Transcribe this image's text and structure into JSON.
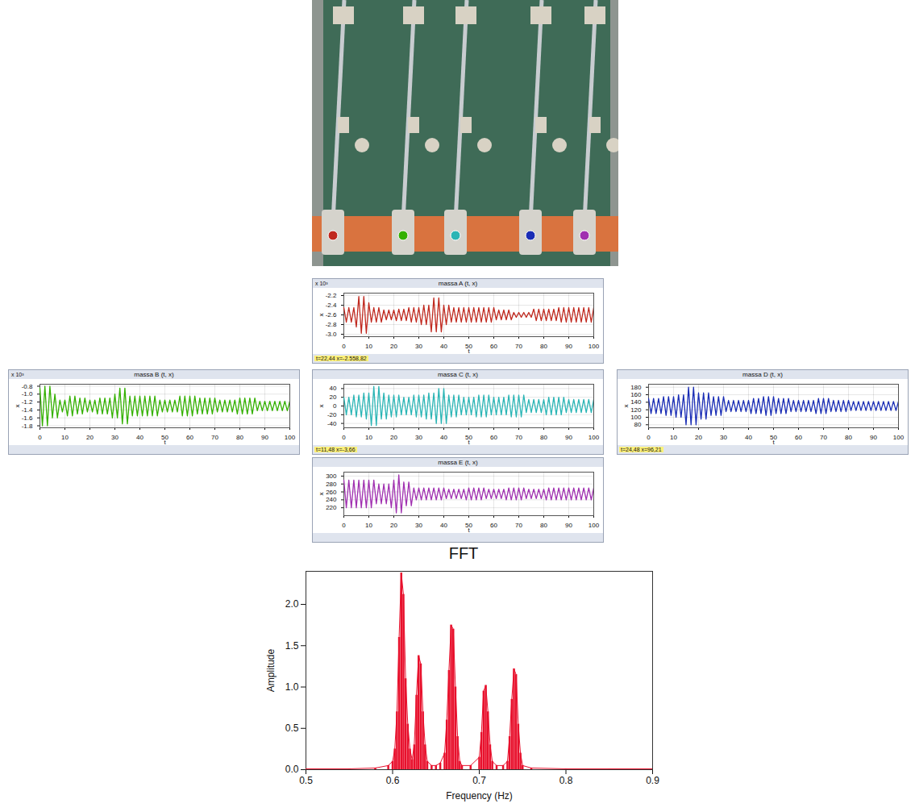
{
  "chart_data": [
    {
      "type": "line",
      "title": "massa A (t, x)",
      "xlabel": "t",
      "ylabel": "x",
      "y_multiplier": "x 10³",
      "readout": "t=22,44 x=-2.558,82",
      "color": "#c0281e",
      "grid": true,
      "xlim": [
        0,
        100
      ],
      "xticks": [
        0,
        10,
        20,
        30,
        40,
        50,
        60,
        70,
        80,
        90,
        100
      ],
      "ylim": [
        -3.05,
        -2.15
      ],
      "yticks": [
        {
          "value": -3,
          "label": "-3.0"
        },
        -2.8,
        -2.6,
        -2.4,
        -2.2
      ],
      "x": [
        0,
        1,
        2,
        3,
        4,
        5,
        6,
        7,
        8,
        9,
        10,
        11,
        12,
        13,
        14,
        15,
        16,
        17,
        18,
        19,
        20,
        21,
        22,
        23,
        24,
        25,
        26,
        27,
        28,
        29,
        30,
        31,
        32,
        33,
        34,
        35,
        36,
        37,
        38,
        39,
        40,
        41,
        42,
        43,
        44,
        45,
        46,
        47,
        48,
        49,
        50,
        51,
        52,
        53,
        54,
        55,
        56,
        57,
        58,
        59,
        60,
        61,
        62,
        63,
        64,
        65,
        66,
        67,
        68,
        69,
        70,
        71,
        72,
        73,
        74,
        75,
        76,
        77,
        78,
        79,
        80,
        81,
        82,
        83,
        84,
        85,
        86,
        87,
        88,
        89,
        90,
        91,
        92,
        93,
        94,
        95,
        96,
        97,
        98,
        99,
        100
      ],
      "values": [
        -2.45,
        -2.75,
        -2.45,
        -2.75,
        -2.45,
        -2.85,
        -2.22,
        -2.98,
        -2.22,
        -2.98,
        -2.35,
        -2.75,
        -2.45,
        -2.75,
        -2.45,
        -2.75,
        -2.5,
        -2.7,
        -2.5,
        -2.7,
        -2.5,
        -2.72,
        -2.48,
        -2.72,
        -2.48,
        -2.72,
        -2.45,
        -2.75,
        -2.45,
        -2.75,
        -2.45,
        -2.8,
        -2.4,
        -2.8,
        -2.4,
        -2.95,
        -2.25,
        -2.95,
        -2.25,
        -2.95,
        -2.4,
        -2.8,
        -2.4,
        -2.75,
        -2.45,
        -2.75,
        -2.45,
        -2.75,
        -2.45,
        -2.75,
        -2.45,
        -2.75,
        -2.45,
        -2.75,
        -2.45,
        -2.75,
        -2.45,
        -2.75,
        -2.45,
        -2.75,
        -2.45,
        -2.7,
        -2.5,
        -2.7,
        -2.5,
        -2.7,
        -2.5,
        -2.7,
        -2.55,
        -2.65,
        -2.55,
        -2.65,
        -2.55,
        -2.65,
        -2.55,
        -2.65,
        -2.48,
        -2.72,
        -2.48,
        -2.72,
        -2.48,
        -2.72,
        -2.48,
        -2.72,
        -2.48,
        -2.72,
        -2.45,
        -2.75,
        -2.45,
        -2.75,
        -2.45,
        -2.75,
        -2.45,
        -2.75,
        -2.45,
        -2.75,
        -2.45,
        -2.75,
        -2.45,
        -2.75,
        -2.45
      ]
    },
    {
      "type": "line",
      "title": "massa B (t, x)",
      "xlabel": "t",
      "ylabel": "x",
      "y_multiplier": "x 10³",
      "color": "#33b000",
      "grid": true,
      "xlim": [
        0,
        100
      ],
      "xticks": [
        0,
        10,
        20,
        30,
        40,
        50,
        60,
        70,
        80,
        90,
        100
      ],
      "ylim": [
        -1.85,
        -0.75
      ],
      "yticks": [
        -1.8,
        -1.6,
        -1.4,
        -1.2,
        {
          "value": -1,
          "label": "-1.0"
        },
        -0.8
      ],
      "x": [
        0,
        1,
        2,
        3,
        4,
        5,
        6,
        7,
        8,
        9,
        10,
        11,
        12,
        13,
        14,
        15,
        16,
        17,
        18,
        19,
        20,
        21,
        22,
        23,
        24,
        25,
        26,
        27,
        28,
        29,
        30,
        31,
        32,
        33,
        34,
        35,
        36,
        37,
        38,
        39,
        40,
        41,
        42,
        43,
        44,
        45,
        46,
        47,
        48,
        49,
        50,
        51,
        52,
        53,
        54,
        55,
        56,
        57,
        58,
        59,
        60,
        61,
        62,
        63,
        64,
        65,
        66,
        67,
        68,
        69,
        70,
        71,
        72,
        73,
        74,
        75,
        76,
        77,
        78,
        79,
        80,
        81,
        82,
        83,
        84,
        85,
        86,
        87,
        88,
        89,
        90,
        91,
        92,
        93,
        94,
        95,
        96,
        97,
        98,
        99,
        100
      ],
      "values": [
        -0.85,
        -1.8,
        -0.8,
        -1.8,
        -0.8,
        -1.6,
        -1.0,
        -1.6,
        -1.15,
        -1.45,
        -1.15,
        -1.55,
        -1.05,
        -1.55,
        -1.05,
        -1.5,
        -1.1,
        -1.5,
        -1.1,
        -1.45,
        -1.15,
        -1.45,
        -1.15,
        -1.5,
        -1.1,
        -1.5,
        -1.1,
        -1.5,
        -1.1,
        -1.6,
        -1.0,
        -1.6,
        -0.85,
        -1.75,
        -0.85,
        -1.75,
        -1.05,
        -1.55,
        -1.05,
        -1.55,
        -1.05,
        -1.55,
        -1.05,
        -1.55,
        -1.05,
        -1.55,
        -1.05,
        -1.55,
        -1.15,
        -1.45,
        -1.15,
        -1.45,
        -1.15,
        -1.45,
        -1.15,
        -1.45,
        -1.05,
        -1.55,
        -1.05,
        -1.55,
        -1.05,
        -1.55,
        -1.05,
        -1.5,
        -1.1,
        -1.5,
        -1.1,
        -1.5,
        -1.1,
        -1.5,
        -1.1,
        -1.45,
        -1.15,
        -1.45,
        -1.15,
        -1.45,
        -1.15,
        -1.45,
        -1.15,
        -1.5,
        -1.1,
        -1.5,
        -1.1,
        -1.5,
        -1.1,
        -1.5,
        -1.1,
        -1.42,
        -1.18,
        -1.42,
        -1.18,
        -1.42,
        -1.18,
        -1.42,
        -1.18,
        -1.42,
        -1.18,
        -1.42,
        -1.18,
        -1.42,
        -1.18
      ]
    },
    {
      "type": "line",
      "title": "massa C (t, x)",
      "xlabel": "t",
      "ylabel": "x",
      "readout": "t=11,48 x=-3,66",
      "color": "#2bb5b5",
      "grid": true,
      "xlim": [
        0,
        100
      ],
      "xticks": [
        0,
        10,
        20,
        30,
        40,
        50,
        60,
        70,
        80,
        90,
        100
      ],
      "ylim": [
        -50,
        50
      ],
      "yticks": [
        -40,
        -20,
        0,
        20,
        40
      ],
      "x": [
        0,
        1,
        2,
        3,
        4,
        5,
        6,
        7,
        8,
        9,
        10,
        11,
        12,
        13,
        14,
        15,
        16,
        17,
        18,
        19,
        20,
        21,
        22,
        23,
        24,
        25,
        26,
        27,
        28,
        29,
        30,
        31,
        32,
        33,
        34,
        35,
        36,
        37,
        38,
        39,
        40,
        41,
        42,
        43,
        44,
        45,
        46,
        47,
        48,
        49,
        50,
        51,
        52,
        53,
        54,
        55,
        56,
        57,
        58,
        59,
        60,
        61,
        62,
        63,
        64,
        65,
        66,
        67,
        68,
        69,
        70,
        71,
        72,
        73,
        74,
        75,
        76,
        77,
        78,
        79,
        80,
        81,
        82,
        83,
        84,
        85,
        86,
        87,
        88,
        89,
        90,
        91,
        92,
        93,
        94,
        95,
        96,
        97,
        98,
        99,
        100
      ],
      "values": [
        20,
        -20,
        20,
        -20,
        25,
        -25,
        25,
        -25,
        30,
        -30,
        30,
        -45,
        45,
        -45,
        45,
        -30,
        30,
        -30,
        25,
        -25,
        25,
        -25,
        25,
        -20,
        20,
        -20,
        20,
        -20,
        25,
        -25,
        25,
        -25,
        25,
        -30,
        30,
        -30,
        30,
        -40,
        40,
        -40,
        40,
        -40,
        25,
        -25,
        25,
        -25,
        25,
        -20,
        20,
        -20,
        20,
        -20,
        20,
        -25,
        25,
        -25,
        25,
        -25,
        25,
        -20,
        20,
        -20,
        20,
        -20,
        20,
        -20,
        25,
        -25,
        25,
        -25,
        25,
        -25,
        25,
        -15,
        15,
        -15,
        15,
        -15,
        15,
        -15,
        15,
        -20,
        20,
        -20,
        20,
        -20,
        20,
        -20,
        20,
        -15,
        15,
        -15,
        15,
        -15,
        15,
        -15,
        15,
        -15,
        15,
        -15,
        15
      ]
    },
    {
      "type": "line",
      "title": "massa D (t, x)",
      "xlabel": "t",
      "ylabel": "x",
      "readout": "t=24,48 x=96,21",
      "color": "#1a2db5",
      "grid": true,
      "xlim": [
        0,
        100
      ],
      "xticks": [
        0,
        10,
        20,
        30,
        40,
        50,
        60,
        70,
        80,
        90,
        100
      ],
      "ylim": [
        72,
        188
      ],
      "yticks": [
        80,
        100,
        120,
        140,
        160,
        180
      ],
      "x": [
        0,
        1,
        2,
        3,
        4,
        5,
        6,
        7,
        8,
        9,
        10,
        11,
        12,
        13,
        14,
        15,
        16,
        17,
        18,
        19,
        20,
        21,
        22,
        23,
        24,
        25,
        26,
        27,
        28,
        29,
        30,
        31,
        32,
        33,
        34,
        35,
        36,
        37,
        38,
        39,
        40,
        41,
        42,
        43,
        44,
        45,
        46,
        47,
        48,
        49,
        50,
        51,
        52,
        53,
        54,
        55,
        56,
        57,
        58,
        59,
        60,
        61,
        62,
        63,
        64,
        65,
        66,
        67,
        68,
        69,
        70,
        71,
        72,
        73,
        74,
        75,
        76,
        77,
        78,
        79,
        80,
        81,
        82,
        83,
        84,
        85,
        86,
        87,
        88,
        89,
        90,
        91,
        92,
        93,
        94,
        95,
        96,
        97,
        98,
        99,
        100
      ],
      "values": [
        150,
        110,
        150,
        110,
        150,
        110,
        155,
        105,
        155,
        105,
        155,
        100,
        160,
        100,
        160,
        80,
        180,
        80,
        180,
        80,
        165,
        95,
        165,
        95,
        165,
        105,
        155,
        105,
        155,
        105,
        155,
        115,
        145,
        115,
        145,
        115,
        145,
        115,
        145,
        115,
        145,
        110,
        150,
        110,
        150,
        110,
        155,
        105,
        155,
        105,
        155,
        110,
        150,
        110,
        150,
        110,
        150,
        115,
        145,
        115,
        145,
        115,
        145,
        115,
        145,
        115,
        145,
        110,
        150,
        110,
        150,
        110,
        150,
        115,
        145,
        115,
        145,
        115,
        145,
        115,
        145,
        118,
        142,
        118,
        142,
        118,
        142,
        118,
        142,
        118,
        142,
        118,
        142,
        118,
        142,
        118,
        142,
        118,
        142,
        118,
        142
      ]
    },
    {
      "type": "line",
      "title": "massa E (t, x)",
      "xlabel": "t",
      "ylabel": "x",
      "color": "#a030b0",
      "grid": true,
      "xlim": [
        0,
        100
      ],
      "xticks": [
        0,
        10,
        20,
        30,
        40,
        50,
        60,
        70,
        80,
        90,
        100
      ],
      "ylim": [
        200,
        310
      ],
      "yticks": [
        220,
        240,
        260,
        280,
        300
      ],
      "x": [
        0,
        1,
        2,
        3,
        4,
        5,
        6,
        7,
        8,
        9,
        10,
        11,
        12,
        13,
        14,
        15,
        16,
        17,
        18,
        19,
        20,
        21,
        22,
        23,
        24,
        25,
        26,
        27,
        28,
        29,
        30,
        31,
        32,
        33,
        34,
        35,
        36,
        37,
        38,
        39,
        40,
        41,
        42,
        43,
        44,
        45,
        46,
        47,
        48,
        49,
        50,
        51,
        52,
        53,
        54,
        55,
        56,
        57,
        58,
        59,
        60,
        61,
        62,
        63,
        64,
        65,
        66,
        67,
        68,
        69,
        70,
        71,
        72,
        73,
        74,
        75,
        76,
        77,
        78,
        79,
        80,
        81,
        82,
        83,
        84,
        85,
        86,
        87,
        88,
        89,
        90,
        91,
        92,
        93,
        94,
        95,
        96,
        97,
        98,
        99,
        100
      ],
      "values": [
        290,
        220,
        290,
        220,
        290,
        220,
        290,
        220,
        290,
        220,
        290,
        220,
        290,
        230,
        280,
        230,
        280,
        230,
        280,
        220,
        290,
        207,
        303,
        207,
        285,
        225,
        285,
        225,
        270,
        240,
        270,
        240,
        270,
        240,
        270,
        240,
        270,
        240,
        270,
        240,
        270,
        243,
        267,
        243,
        267,
        243,
        267,
        243,
        267,
        240,
        270,
        240,
        270,
        240,
        270,
        240,
        270,
        243,
        267,
        243,
        267,
        243,
        267,
        243,
        267,
        240,
        270,
        240,
        270,
        240,
        270,
        240,
        270,
        243,
        267,
        243,
        267,
        243,
        267,
        243,
        267,
        240,
        270,
        240,
        270,
        240,
        270,
        240,
        270,
        240,
        270,
        240,
        270,
        240,
        270,
        240,
        270,
        240,
        270,
        240,
        270
      ]
    },
    {
      "type": "bar",
      "title": "FFT",
      "xlabel": "Frequency (Hz)",
      "ylabel": "Amplitude",
      "color": "#e8112d",
      "grid": false,
      "xlim": [
        0.5,
        0.9
      ],
      "xticks": [
        0.5,
        0.6,
        0.7,
        0.8,
        0.9
      ],
      "ylim": [
        0,
        2.4
      ],
      "yticks": [
        {
          "value": 0,
          "label": "0.0"
        },
        {
          "value": 0.5,
          "label": "0.5"
        },
        {
          "value": 1,
          "label": "1.0"
        },
        {
          "value": 1.5,
          "label": "1.5"
        },
        {
          "value": 2,
          "label": "2.0"
        }
      ],
      "x": [
        0.5,
        0.55,
        0.58,
        0.595,
        0.6,
        0.6025,
        0.605,
        0.6075,
        0.61,
        0.6125,
        0.615,
        0.6175,
        0.62,
        0.6225,
        0.625,
        0.6275,
        0.63,
        0.6325,
        0.635,
        0.6375,
        0.64,
        0.645,
        0.65,
        0.655,
        0.66,
        0.6625,
        0.665,
        0.6675,
        0.67,
        0.6725,
        0.675,
        0.6775,
        0.68,
        0.69,
        0.7,
        0.7025,
        0.705,
        0.7075,
        0.71,
        0.7125,
        0.715,
        0.72,
        0.7275,
        0.7325,
        0.735,
        0.7375,
        0.74,
        0.7425,
        0.745,
        0.7475,
        0.75,
        0.76,
        0.8,
        0.85,
        0.9
      ],
      "values": [
        0.01,
        0.01,
        0.02,
        0.05,
        0.1,
        0.25,
        0.7,
        1.6,
        2.38,
        2.12,
        1.1,
        0.55,
        0.25,
        0.12,
        0.3,
        0.9,
        1.38,
        1.28,
        0.7,
        0.3,
        0.1,
        0.05,
        0.05,
        0.08,
        0.2,
        0.6,
        1.2,
        1.75,
        1.7,
        1.0,
        0.4,
        0.1,
        0.05,
        0.05,
        0.15,
        0.45,
        0.95,
        1.02,
        0.7,
        0.3,
        0.1,
        0.05,
        0.05,
        0.1,
        0.4,
        0.85,
        1.22,
        1.15,
        0.55,
        0.2,
        0.05,
        0.02,
        0.01,
        0.01,
        0.01
      ]
    }
  ]
}
